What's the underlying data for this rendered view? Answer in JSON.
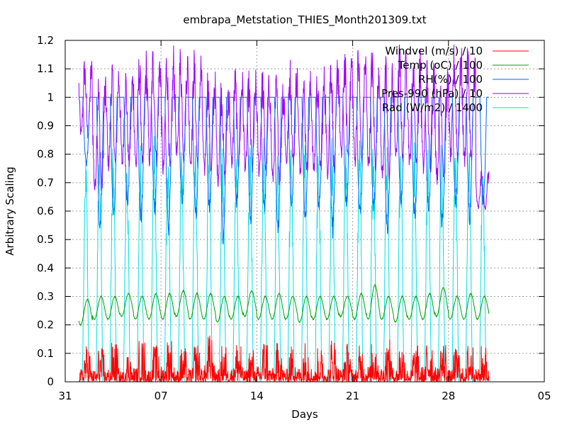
{
  "chart_data": {
    "type": "line",
    "title": "embrapa_Metstation_THIES_Month201309.txt",
    "xlabel": "Days",
    "ylabel": "Arbitrary Scaling",
    "xlim": [
      "2013-08-31",
      "2013-10-05"
    ],
    "ylim": [
      0,
      1.2
    ],
    "grid": true,
    "legend_position": "top-right",
    "x_ticks": [
      {
        "date": "2013-08-31",
        "label": "31"
      },
      {
        "date": "2013-09-07",
        "label": "07"
      },
      {
        "date": "2013-09-14",
        "label": "14"
      },
      {
        "date": "2013-09-21",
        "label": "21"
      },
      {
        "date": "2013-09-28",
        "label": "28"
      },
      {
        "date": "2013-10-05",
        "label": "05"
      }
    ],
    "y_ticks": [
      "0",
      "0.1",
      "0.2",
      "0.3",
      "0.4",
      "0.5",
      "0.6",
      "0.7",
      "0.8",
      "0.9",
      "1",
      "1.1",
      "1.2"
    ],
    "x_start": "2013-09-01",
    "x_end": "2013-09-30",
    "series": [
      {
        "name": "Windvel (m/s) / 10",
        "color": "#ff0000",
        "daily_min": [
          0,
          0,
          0,
          0,
          0,
          0,
          0,
          0,
          0,
          0,
          0,
          0,
          0,
          0,
          0,
          0,
          0,
          0,
          0,
          0,
          0,
          0,
          0,
          0,
          0,
          0,
          0,
          0,
          0,
          0
        ],
        "daily_max": [
          0.13,
          0.12,
          0.14,
          0.11,
          0.15,
          0.13,
          0.16,
          0.12,
          0.14,
          0.17,
          0.13,
          0.15,
          0.12,
          0.16,
          0.14,
          0.13,
          0.15,
          0.12,
          0.16,
          0.14,
          0.13,
          0.17,
          0.15,
          0.14,
          0.13,
          0.16,
          0.15,
          0.12,
          0.14,
          0.13
        ]
      },
      {
        "name": "Temp (oC) / 100",
        "color": "#00a000",
        "daily_min": [
          0.2,
          0.22,
          0.22,
          0.23,
          0.22,
          0.22,
          0.22,
          0.23,
          0.22,
          0.22,
          0.21,
          0.22,
          0.23,
          0.22,
          0.22,
          0.22,
          0.21,
          0.22,
          0.22,
          0.23,
          0.22,
          0.22,
          0.22,
          0.21,
          0.22,
          0.22,
          0.23,
          0.22,
          0.22,
          0.22
        ],
        "daily_max": [
          0.29,
          0.3,
          0.3,
          0.31,
          0.3,
          0.31,
          0.31,
          0.32,
          0.31,
          0.31,
          0.3,
          0.3,
          0.32,
          0.3,
          0.31,
          0.3,
          0.3,
          0.3,
          0.3,
          0.3,
          0.31,
          0.34,
          0.3,
          0.3,
          0.3,
          0.31,
          0.33,
          0.3,
          0.31,
          0.3
        ]
      },
      {
        "name": "RH(%) / 100",
        "color": "#0066ff",
        "daily_min": [
          0.75,
          0.5,
          0.55,
          0.6,
          0.55,
          0.58,
          0.5,
          0.6,
          0.55,
          0.58,
          0.48,
          0.6,
          0.55,
          0.58,
          0.5,
          0.6,
          0.55,
          0.58,
          0.5,
          0.6,
          0.55,
          0.58,
          0.5,
          0.6,
          0.55,
          0.58,
          0.52,
          0.6,
          0.55,
          0.6
        ],
        "daily_max": [
          1,
          1,
          1,
          1,
          1,
          1,
          1,
          1,
          1,
          1,
          1,
          1,
          1,
          1,
          1,
          1,
          1,
          1,
          1,
          1,
          1,
          1,
          1,
          1,
          1,
          1,
          1,
          1,
          1,
          1
        ]
      },
      {
        "name": "Pres-990 (hPa) / 10",
        "color": "#a000ff",
        "daily_min": [
          0.75,
          0.5,
          0.6,
          0.62,
          0.58,
          0.6,
          0.55,
          0.62,
          0.6,
          0.58,
          0.55,
          0.62,
          0.6,
          0.58,
          0.55,
          0.62,
          0.6,
          0.58,
          0.55,
          0.62,
          0.6,
          0.58,
          0.55,
          0.62,
          0.6,
          0.58,
          0.55,
          0.62,
          0.6,
          0.55
        ],
        "daily_max": [
          1.15,
          1.1,
          1.15,
          1.12,
          1.18,
          1.2,
          1.2,
          1.2,
          1.18,
          1.12,
          1.1,
          1.12,
          1.1,
          1.12,
          1.1,
          1.15,
          1.1,
          1.12,
          1.2,
          1.2,
          1.2,
          1.2,
          1.15,
          1.2,
          1.18,
          1.15,
          1.12,
          1.2,
          1.2,
          0.75
        ]
      },
      {
        "name": "Rad (W/m2) / 1400",
        "color": "#00e0e0",
        "daily_min": [
          0,
          0,
          0,
          0,
          0,
          0,
          0,
          0,
          0,
          0,
          0,
          0,
          0,
          0,
          0,
          0,
          0,
          0,
          0,
          0,
          0,
          0,
          0,
          0,
          0,
          0,
          0,
          0,
          0,
          0
        ],
        "daily_max": [
          0.8,
          0.87,
          0.85,
          0.8,
          0.84,
          0.88,
          0.85,
          0.82,
          0.86,
          0.88,
          0.85,
          0.84,
          0.86,
          0.87,
          0.85,
          0.83,
          0.86,
          0.84,
          0.87,
          0.85,
          0.86,
          0.88,
          0.85,
          0.84,
          0.86,
          0.87,
          0.85,
          0.83,
          0.86,
          0.8
        ]
      }
    ]
  }
}
